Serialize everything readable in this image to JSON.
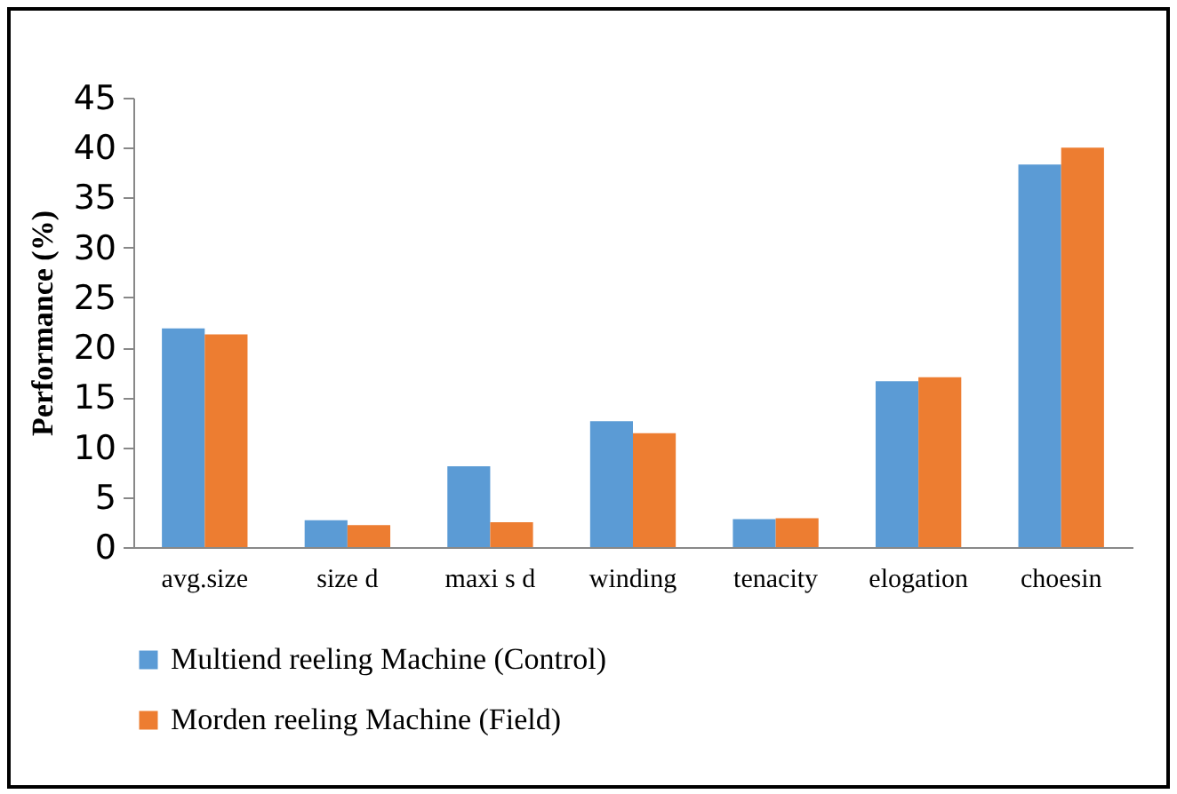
{
  "chart_data": {
    "type": "bar",
    "ylabel": "Performance (%)",
    "categories": [
      "avg.size",
      "size d",
      "maxi s d",
      "winding",
      "tenacity",
      "elogation",
      "choesin"
    ],
    "series": [
      {
        "name": "Multiend reeling Machine  (Control)",
        "color": "#5b9bd5",
        "values": [
          21.9,
          2.7,
          8.1,
          12.6,
          2.8,
          16.6,
          38.3
        ]
      },
      {
        "name": "Morden reeling Machine (Field)",
        "color": "#ed7d31",
        "values": [
          21.3,
          2.2,
          2.5,
          11.4,
          2.9,
          17.0,
          40.0
        ]
      }
    ],
    "ylim": [
      0,
      45
    ],
    "yticks": [
      0,
      5,
      10,
      15,
      20,
      25,
      30,
      35,
      40,
      45
    ],
    "grid": false,
    "legend": "bottom"
  }
}
